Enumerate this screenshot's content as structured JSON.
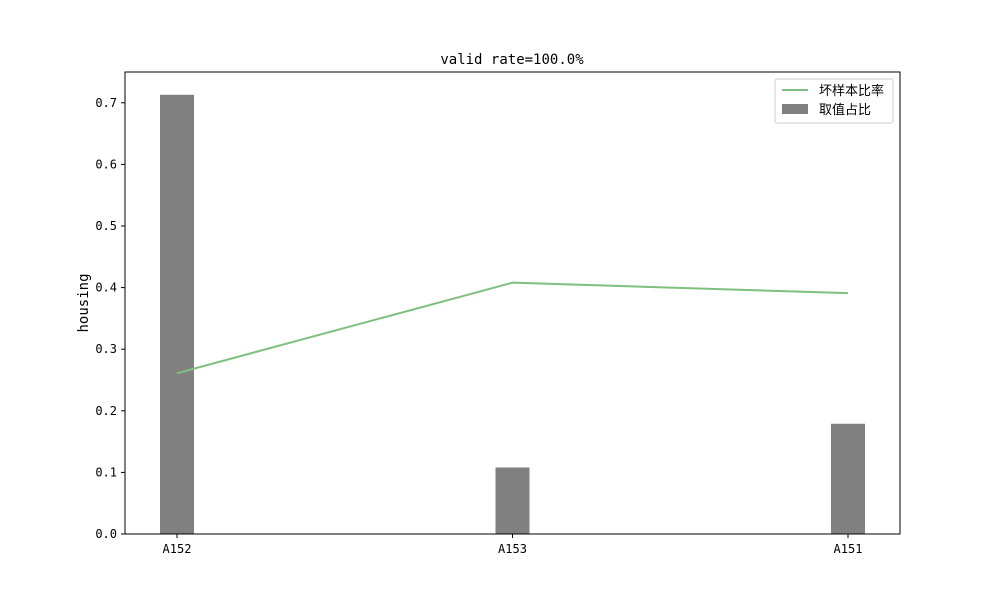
{
  "chart_data": {
    "type": "bar+line",
    "title": "valid rate=100.0%",
    "xlabel": "",
    "ylabel": "housing",
    "categories": [
      "A152",
      "A153",
      "A151"
    ],
    "ylim": [
      0,
      0.75
    ],
    "yticks": [
      0.0,
      0.1,
      0.2,
      0.3,
      0.4,
      0.5,
      0.6,
      0.7
    ],
    "grid": false,
    "legend_position": "top-right",
    "series": [
      {
        "name": "坏样本比率",
        "kind": "line",
        "color": "#7fbf7f",
        "values": [
          0.261,
          0.408,
          0.391
        ]
      },
      {
        "name": "取值占比",
        "kind": "bar",
        "color": "#808080",
        "values": [
          0.713,
          0.108,
          0.179
        ]
      }
    ]
  }
}
